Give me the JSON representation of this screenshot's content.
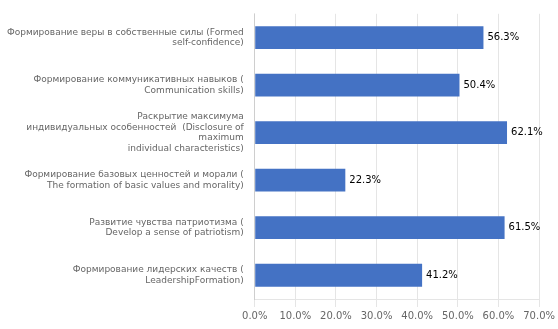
{
  "chart_data": {
    "type": "bar",
    "orientation": "horizontal",
    "categories": [
      "Формирование веры в собственные силы (Formed self-confidence)",
      "Формирование коммуникативных навыков (\nCommunication skills)",
      "Раскрытие максимума индивидуальных особенностей  (Disclosure of maximum\nindividual characteristics)",
      "Формирование базовых ценностей и морали (\nThe formation of basic values and morality)",
      "Развитие чувства патриотизма (\nDevelop a sense of patriotism)",
      "Формирование лидерских качеств (\nLeadershipFormation)"
    ],
    "values": [
      56.3,
      50.4,
      62.1,
      22.3,
      61.5,
      41.2
    ],
    "value_labels": [
      "56.3%",
      "50.4%",
      "62.1%",
      "22.3%",
      "61.5%",
      "41.2%"
    ],
    "data_labels": true,
    "color": "#4472c4",
    "xlim": [
      0,
      70
    ],
    "xticks": [
      {
        "value": 0,
        "label": "0.0%"
      },
      {
        "value": 10,
        "label": "10.0%"
      },
      {
        "value": 20,
        "label": "20.0%"
      },
      {
        "value": 30,
        "label": "30.0%"
      },
      {
        "value": 40,
        "label": "40.0%"
      },
      {
        "value": 50,
        "label": "50.0%"
      },
      {
        "value": 60,
        "label": "60.0%"
      },
      {
        "value": 70,
        "label": "70.0%"
      }
    ],
    "grid": true
  }
}
